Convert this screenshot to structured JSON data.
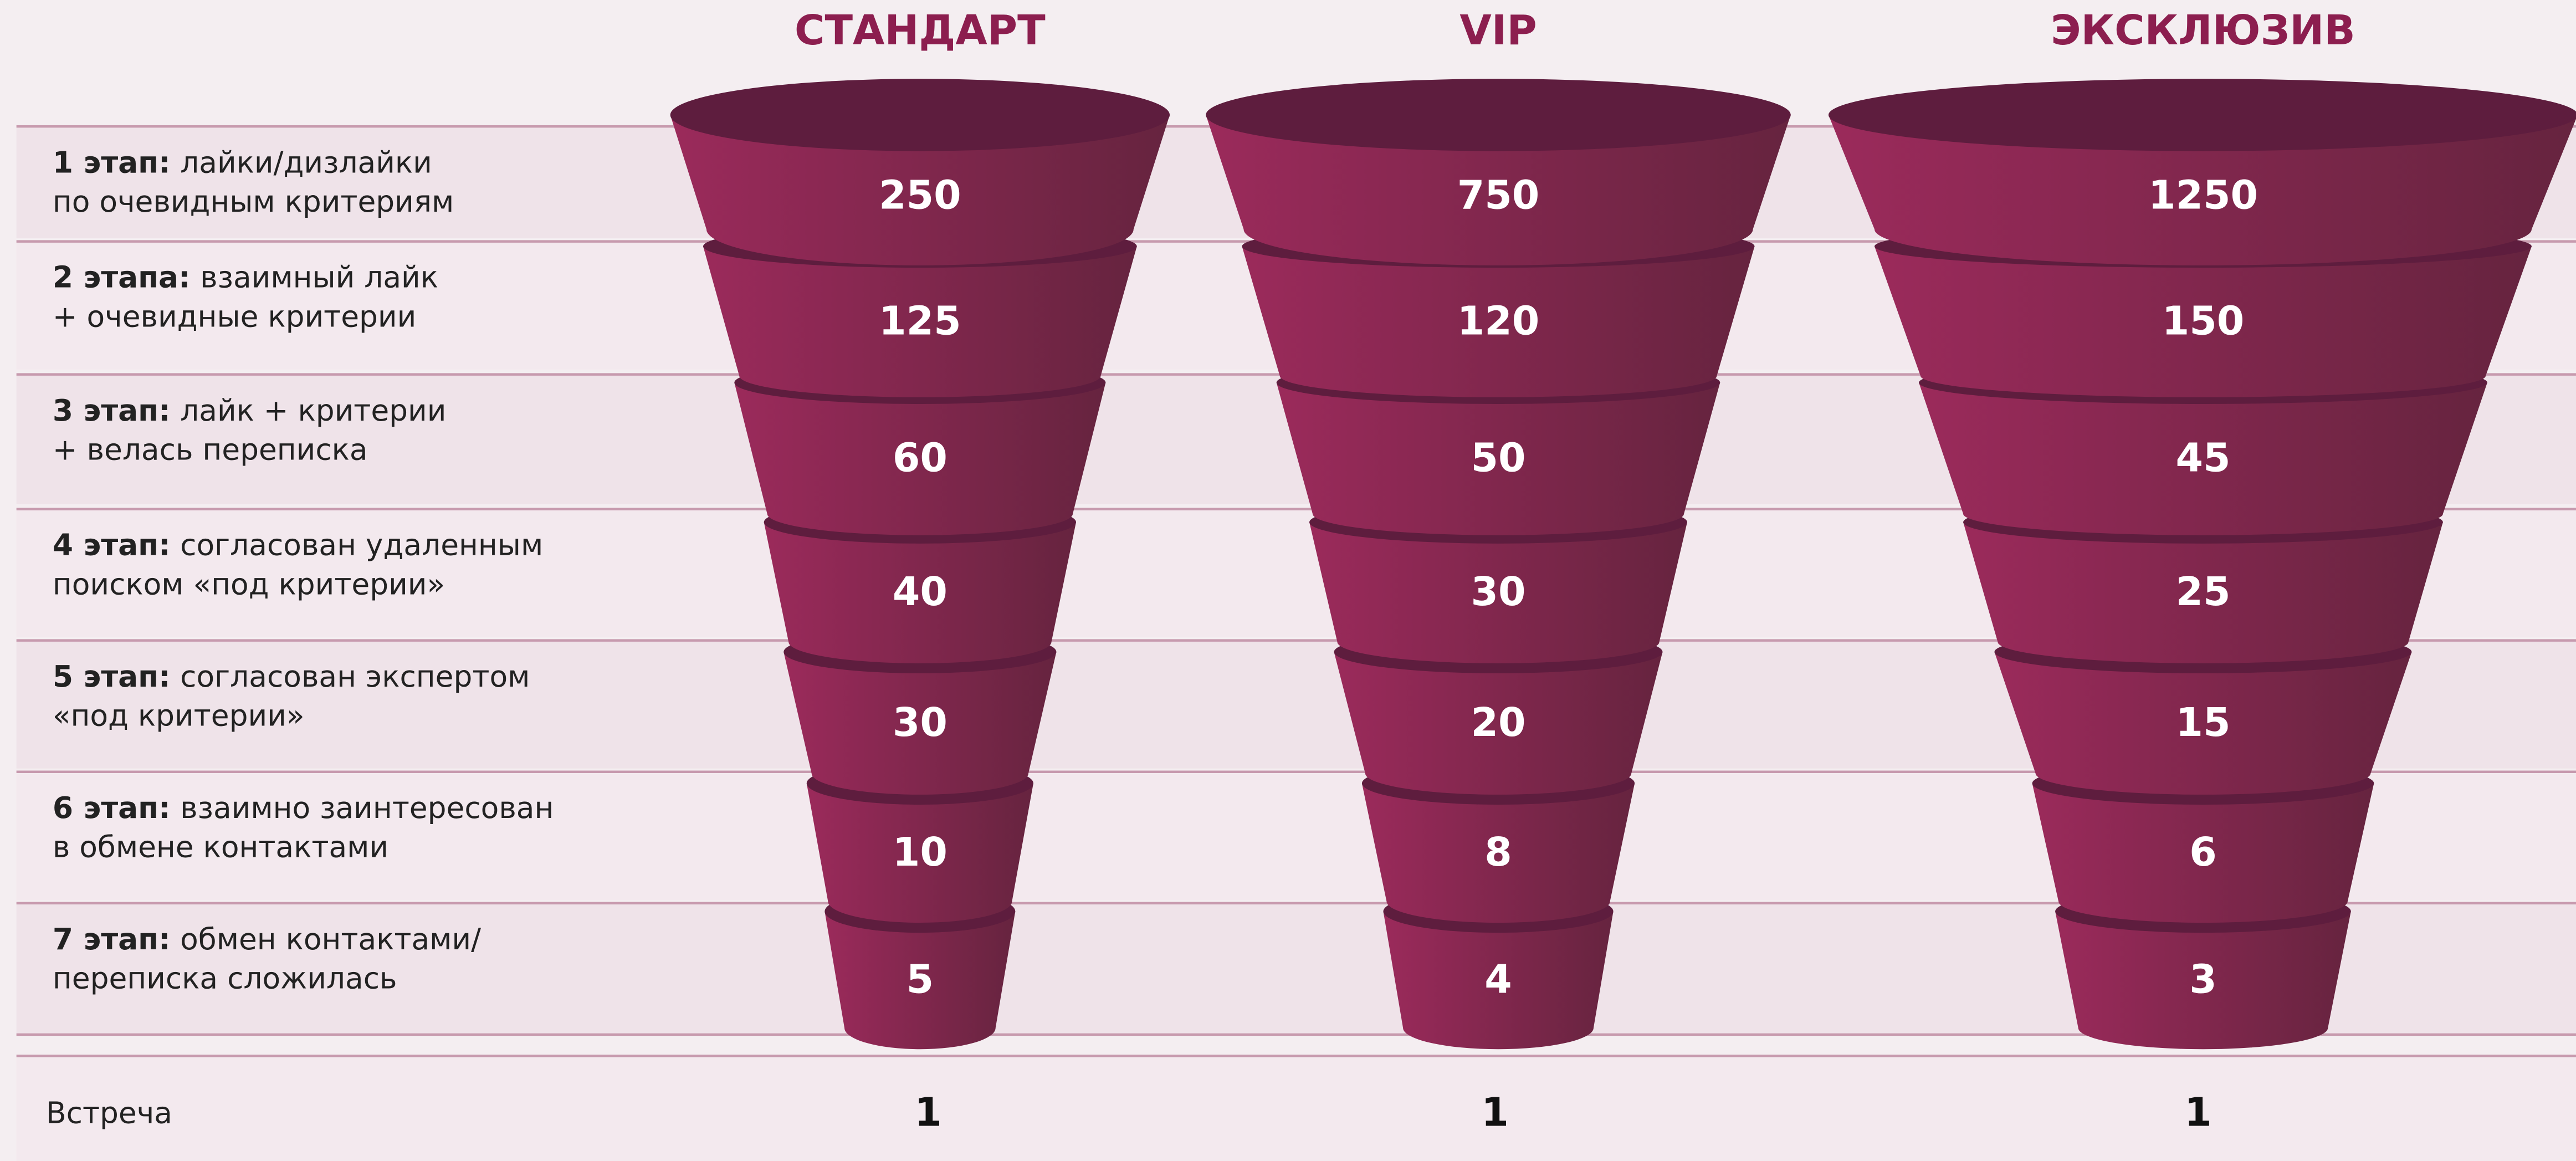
{
  "columns": [
    "СТАНДАРТ",
    "VIP",
    "ЭКСКЛЮЗИВ"
  ],
  "stages": [
    {
      "bold": "1 этап:",
      "lines": [
        "лайки/дизлайки",
        "по очевидным критериям"
      ],
      "values": [
        250,
        750,
        1250
      ]
    },
    {
      "bold": "2 этапа:",
      "lines": [
        "взаимный лайк",
        "+ очевидные критерии"
      ],
      "values": [
        125,
        120,
        150
      ]
    },
    {
      "bold": "3 этап:",
      "lines": [
        "лайк + критерии",
        "+ велась переписка"
      ],
      "values": [
        60,
        50,
        45
      ]
    },
    {
      "bold": "4 этап:",
      "lines": [
        "согласован удаленным",
        "поиском «под критерии»"
      ],
      "values": [
        40,
        30,
        25
      ]
    },
    {
      "bold": "5 этап:",
      "lines": [
        "согласован экспертом",
        "«под критерии»"
      ],
      "values": [
        30,
        20,
        15
      ]
    },
    {
      "bold": "6 этап:",
      "lines": [
        "взаимно заинтересован",
        "в обмене контактами"
      ],
      "values": [
        10,
        8,
        6
      ]
    },
    {
      "bold": "7 этап:",
      "lines": [
        "обмен контактами/",
        "переписка сложилась"
      ],
      "values": [
        5,
        4,
        3
      ]
    }
  ],
  "final": {
    "label": "Встреча",
    "values": [
      1,
      1,
      1
    ]
  }
}
